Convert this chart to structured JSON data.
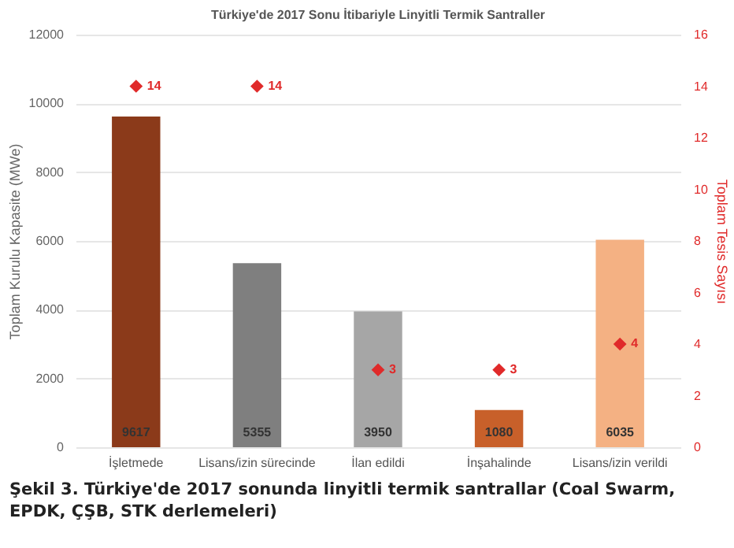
{
  "chart_data": {
    "type": "bar",
    "title": "Türkiye'de 2017 Sonu İtibariyle Linyitli Termik Santraller",
    "ylabel": "Toplam Kurulu Kapasite (MWe)",
    "y2label": "Toplam Tesis Sayısı",
    "categories": [
      "İşletmede",
      "Lisans/izin sürecinde",
      "İlan edildi",
      "İnşahalinde",
      "Lisans/izin verildi"
    ],
    "series": [
      {
        "colors": [
          "#8b3a1a",
          "#7f7f7f",
          "#a6a6a6",
          "#c8602a",
          "#f4b183"
        ],
        "values": [
          9617,
          5355,
          3950,
          1080,
          6035
        ]
      },
      {
        "type": "scatter",
        "axis": "y2",
        "color": "#e02a2a",
        "marker": "diamond",
        "values": [
          14,
          14,
          3,
          3,
          4
        ]
      }
    ],
    "data_labels": true,
    "ylim": [
      0,
      12000
    ],
    "yticks": [
      0,
      2000,
      4000,
      6000,
      8000,
      10000,
      12000
    ],
    "y2lim": [
      0,
      16
    ],
    "y2ticks": [
      0,
      2,
      4,
      6,
      8,
      10,
      12,
      14,
      16
    ],
    "grid": "y",
    "annotations": [
      "Şekil 3. Türkiye'de 2017 sonunda linyitli termik santrallar (Coal Swarm, EPDK, ÇŞB, STK derlemeleri)"
    ]
  }
}
